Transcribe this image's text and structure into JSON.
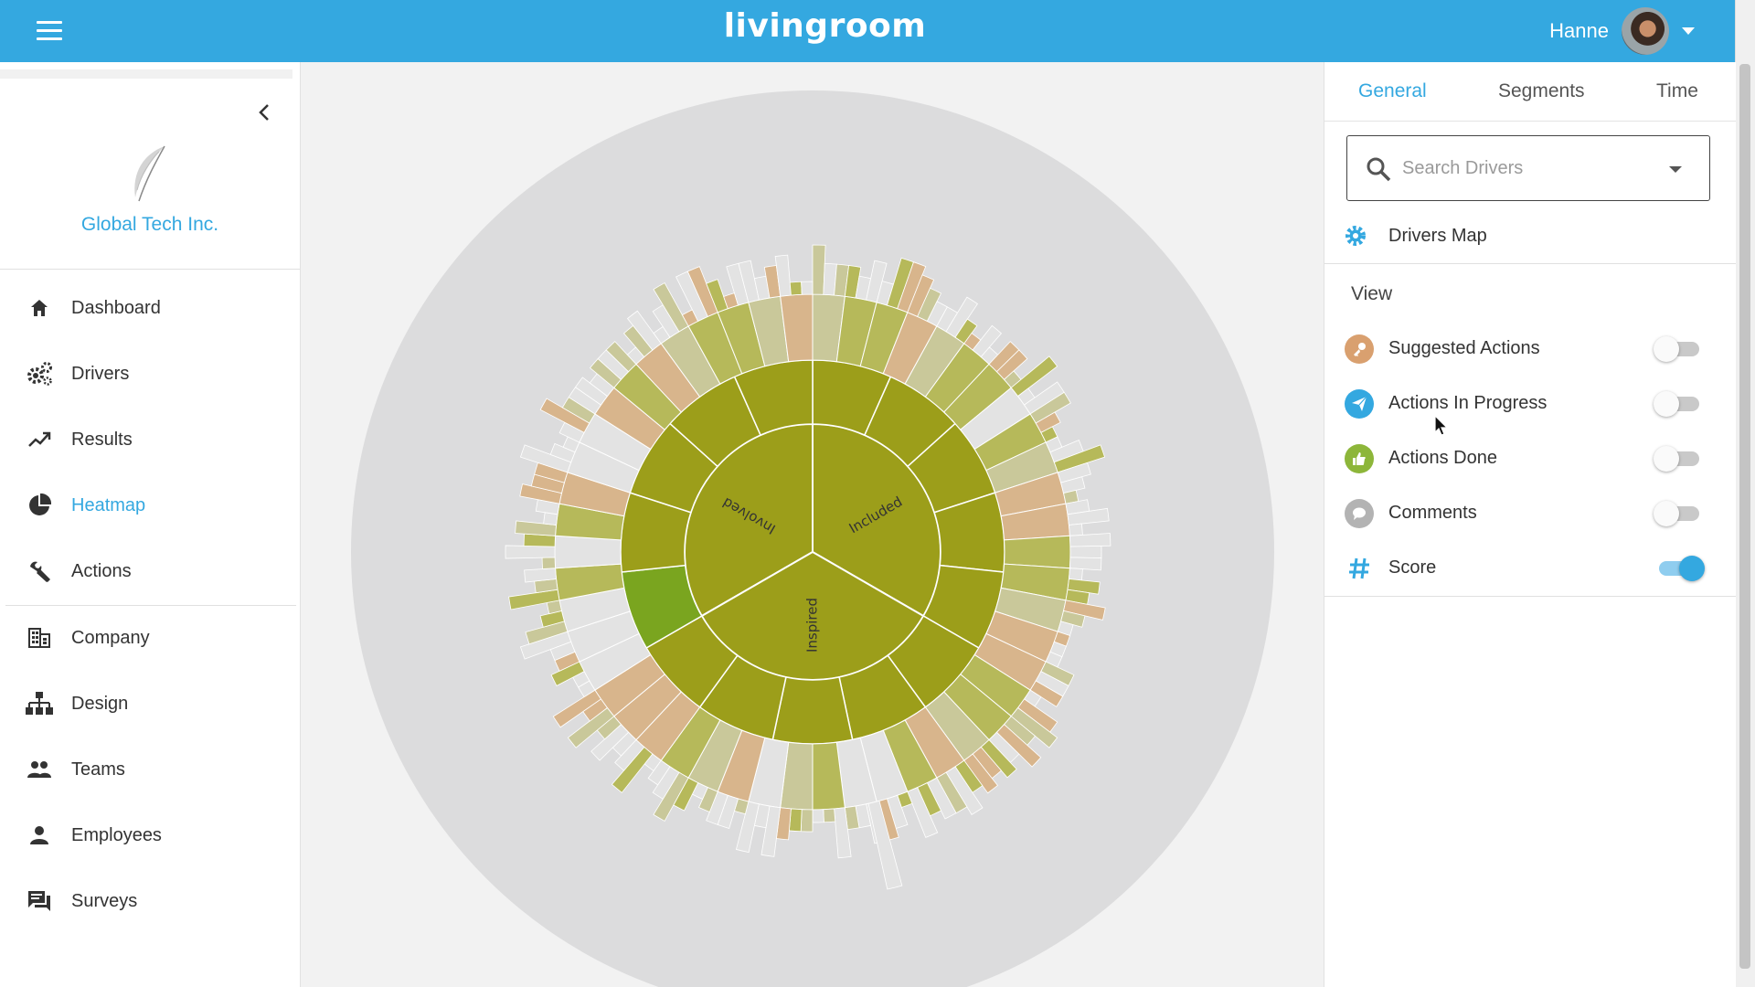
{
  "app": {
    "name": "livingroom",
    "accent": "#34a8e0"
  },
  "user": {
    "name": "Hanne"
  },
  "company": {
    "name": "Global Tech Inc."
  },
  "nav": [
    {
      "key": "dashboard",
      "label": "Dashboard",
      "icon": "home-icon"
    },
    {
      "key": "drivers",
      "label": "Drivers",
      "icon": "gears-icon"
    },
    {
      "key": "results",
      "label": "Results",
      "icon": "trending-up-icon"
    },
    {
      "key": "heatmap",
      "label": "Heatmap",
      "icon": "pie-chart-icon",
      "active": true
    },
    {
      "key": "actions",
      "label": "Actions",
      "icon": "wrench-icon"
    },
    {
      "key": "company",
      "label": "Company",
      "icon": "building-icon"
    },
    {
      "key": "design",
      "label": "Design",
      "icon": "org-chart-icon"
    },
    {
      "key": "teams",
      "label": "Teams",
      "icon": "group-icon"
    },
    {
      "key": "employees",
      "label": "Employees",
      "icon": "person-icon"
    },
    {
      "key": "surveys",
      "label": "Surveys",
      "icon": "chat-icon"
    }
  ],
  "panel": {
    "tabs": [
      {
        "label": "General",
        "active": true
      },
      {
        "label": "Segments"
      },
      {
        "label": "Time"
      }
    ],
    "search": {
      "placeholder": "Search Drivers"
    },
    "drivers_map": {
      "label": "Drivers Map",
      "icon": "gear-icon"
    },
    "view": {
      "title": "View",
      "options": [
        {
          "label": "Suggested Actions",
          "icon": "key-icon",
          "color": "#d9a06f",
          "on": false
        },
        {
          "label": "Actions In Progress",
          "icon": "paper-plane-icon",
          "color": "#34a8e0",
          "on": false
        },
        {
          "label": "Actions Done",
          "icon": "thumbs-up-icon",
          "color": "#8db63a",
          "on": false
        },
        {
          "label": "Comments",
          "icon": "comment-icon",
          "color": "#b3b3b3",
          "on": false
        },
        {
          "label": "Score",
          "icon": "hash-icon",
          "color": "#34a8e0",
          "on": true
        }
      ]
    }
  },
  "heatmap": {
    "inner": [
      "Involved",
      "Included",
      "Inspired"
    ],
    "colors": {
      "olive": "#9c9e1a",
      "bright": "#7aa51f",
      "lightolive": "#b6b95a",
      "tan": "#d8b58c",
      "sage": "#c9c89a",
      "pale": "#e3e3e3",
      "bg": "#dcdcdd"
    }
  }
}
